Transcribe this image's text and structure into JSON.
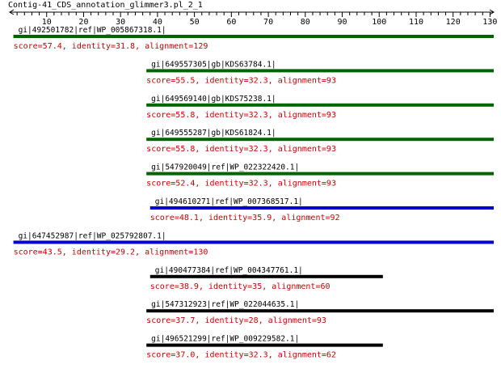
{
  "title": "Contig-41_CDS_annotation_glimmer3.pl_2_1",
  "axis": {
    "min": 0,
    "max": 131,
    "labeled_ticks": [
      10,
      20,
      30,
      40,
      50,
      60,
      70,
      80,
      90,
      100,
      110,
      120,
      130
    ],
    "minor_tick_step": 2
  },
  "colors": {
    "green": "#006400",
    "blue": "#0000cd",
    "black": "#000000",
    "score_text": "#cc0000"
  },
  "hits": [
    {
      "id": "gi|492501782|ref|WP_005867318.1|",
      "start": 1,
      "end": 131,
      "color": "green",
      "score_text": "score=57.4, identity=31.8, alignment=129"
    },
    {
      "id": "gi|649557305|gb|KDS63784.1|",
      "start": 37,
      "end": 131,
      "color": "green",
      "score_text": "score=55.5, identity=32.3, alignment=93"
    },
    {
      "id": "gi|649569140|gb|KDS75238.1|",
      "start": 37,
      "end": 131,
      "color": "green",
      "score_text": "score=55.8, identity=32.3, alignment=93"
    },
    {
      "id": "gi|649555287|gb|KDS61824.1|",
      "start": 37,
      "end": 131,
      "color": "green",
      "score_text": "score=55.8, identity=32.3, alignment=93"
    },
    {
      "id": "gi|547920049|ref|WP_022322420.1|",
      "start": 37,
      "end": 131,
      "color": "green",
      "score_text": "score=52.4, identity=32.3, alignment=93"
    },
    {
      "id": "gi|494610271|ref|WP_007368517.1|",
      "start": 38,
      "end": 131,
      "color": "blue",
      "score_text": "score=48.1, identity=35.9, alignment=92"
    },
    {
      "id": "gi|647452987|ref|WP_025792807.1|",
      "start": 1,
      "end": 131,
      "color": "blue",
      "score_text": "score=43.5, identity=29.2, alignment=130"
    },
    {
      "id": "gi|490477384|ref|WP_004347761.1|",
      "start": 38,
      "end": 101,
      "color": "black",
      "score_text": "score=38.9, identity=35, alignment=60"
    },
    {
      "id": "gi|547312923|ref|WP_022044635.1|",
      "start": 37,
      "end": 131,
      "color": "black",
      "score_text": "score=37.7, identity=28, alignment=93"
    },
    {
      "id": "gi|496521299|ref|WP_009229582.1|",
      "start": 37,
      "end": 101,
      "color": "black",
      "score_text": "score=37.0, identity=32.3, alignment=62"
    }
  ]
}
